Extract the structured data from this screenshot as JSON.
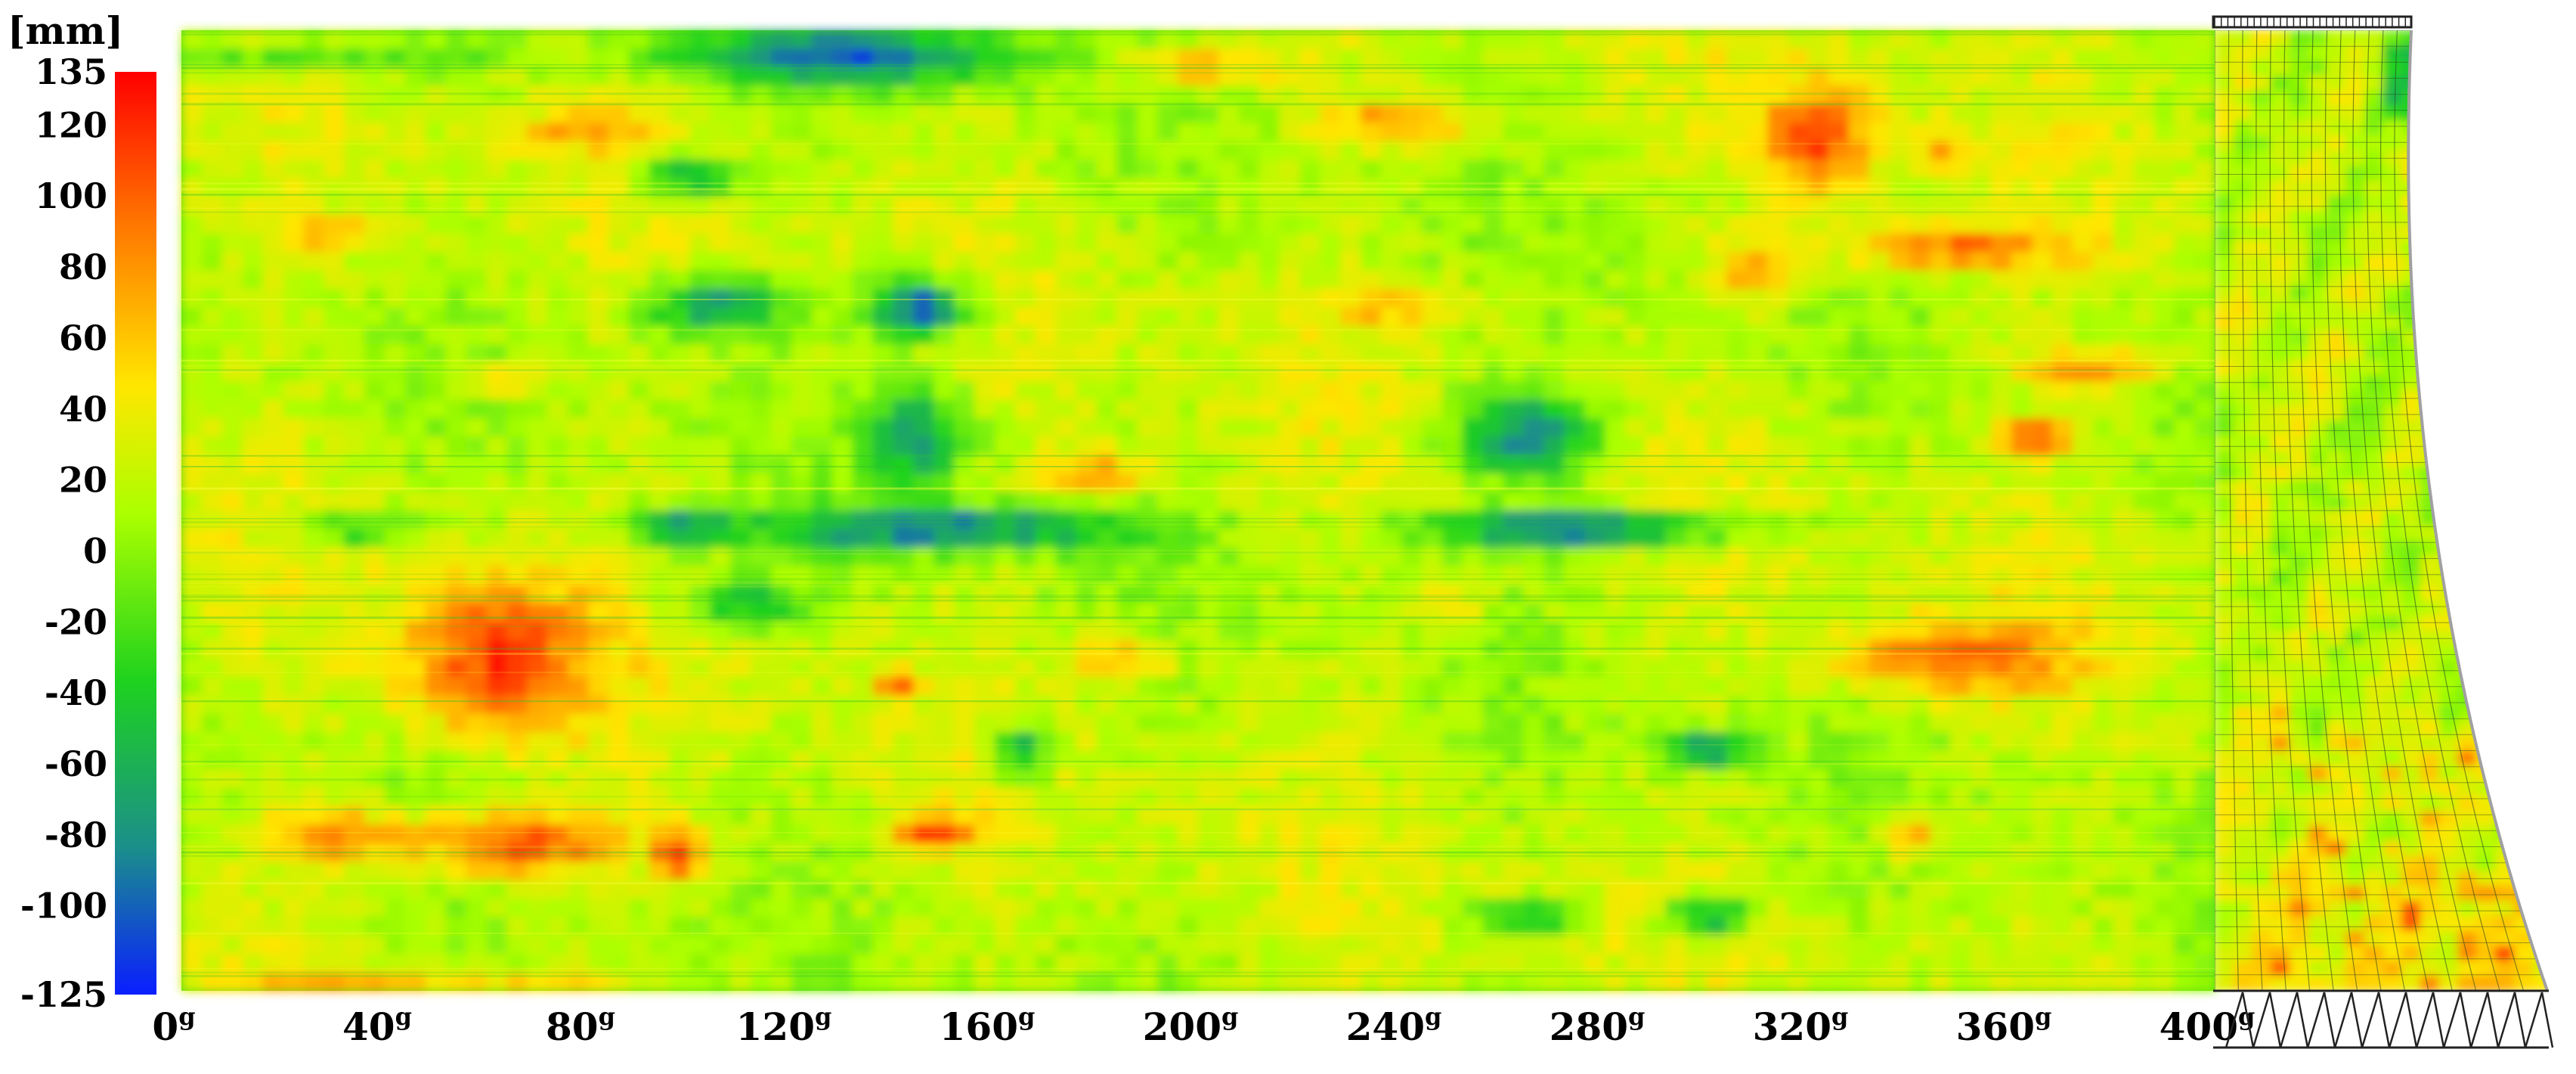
{
  "chart_data": {
    "type": "heatmap",
    "unit": "[mm]",
    "colorbar": {
      "min": -125,
      "max": 135,
      "ticks": [
        "135",
        "120",
        "100",
        "80",
        "60",
        "40",
        "20",
        "0",
        "-20",
        "-40",
        "-60",
        "-80",
        "-100",
        "-125"
      ],
      "colors": [
        "#ff0000",
        "#ff7a00",
        "#ffe600",
        "#aaff00",
        "#1ed21e",
        "#1b8f8a",
        "#0a1eff"
      ]
    },
    "x_ticks": [
      {
        "value": 0,
        "label": "0",
        "sup": "g"
      },
      {
        "value": 40,
        "label": "40",
        "sup": "g"
      },
      {
        "value": 80,
        "label": "80",
        "sup": "g"
      },
      {
        "value": 120,
        "label": "120",
        "sup": "g"
      },
      {
        "value": 160,
        "label": "160",
        "sup": "g"
      },
      {
        "value": 200,
        "label": "200",
        "sup": "g"
      },
      {
        "value": 240,
        "label": "240",
        "sup": "g"
      },
      {
        "value": 280,
        "label": "280",
        "sup": "g"
      },
      {
        "value": 320,
        "label": "320",
        "sup": "g"
      },
      {
        "value": 360,
        "label": "360",
        "sup": "g"
      },
      {
        "value": 400,
        "label": "400",
        "sup": "g"
      }
    ],
    "xlim": [
      0,
      400
    ],
    "grid": false,
    "background_value": 20,
    "blobs": [
      {
        "x": 62,
        "y": -35,
        "rx": 18,
        "ry": 22,
        "v": 110
      },
      {
        "x": 66,
        "y": -85,
        "rx": 20,
        "ry": 9,
        "v": 120
      },
      {
        "x": 30,
        "y": -83,
        "rx": 14,
        "ry": 7,
        "v": 95
      },
      {
        "x": 98,
        "y": -88,
        "rx": 5,
        "ry": 7,
        "v": 125
      },
      {
        "x": 148,
        "y": -82,
        "rx": 8,
        "ry": 4,
        "v": 110
      },
      {
        "x": 322,
        "y": 105,
        "rx": 12,
        "ry": 16,
        "v": 105
      },
      {
        "x": 348,
        "y": 76,
        "rx": 24,
        "ry": 6,
        "v": 95
      },
      {
        "x": 348,
        "y": -35,
        "rx": 22,
        "ry": 10,
        "v": 95
      },
      {
        "x": 375,
        "y": 43,
        "rx": 14,
        "ry": 5,
        "v": 90
      },
      {
        "x": 365,
        "y": 25,
        "rx": 8,
        "ry": 5,
        "v": 95
      },
      {
        "x": 180,
        "y": 15,
        "rx": 10,
        "ry": 7,
        "v": 80
      },
      {
        "x": 200,
        "y": 125,
        "rx": 16,
        "ry": 6,
        "v": 75
      },
      {
        "x": 310,
        "y": 70,
        "rx": 8,
        "ry": 8,
        "v": 80
      },
      {
        "x": 340,
        "y": -83,
        "rx": 6,
        "ry": 6,
        "v": 90
      },
      {
        "x": 65,
        "y": 40,
        "rx": 6,
        "ry": 4,
        "v": 80
      },
      {
        "x": 140,
        "y": -42,
        "rx": 4,
        "ry": 4,
        "v": 95
      },
      {
        "x": 145,
        "y": 60,
        "rx": 10,
        "ry": 8,
        "v": -115
      },
      {
        "x": 130,
        "y": 128,
        "rx": 35,
        "ry": 8,
        "v": -90
      },
      {
        "x": 100,
        "y": 95,
        "rx": 10,
        "ry": 6,
        "v": -70
      },
      {
        "x": 105,
        "y": 60,
        "rx": 14,
        "ry": 8,
        "v": -75
      },
      {
        "x": 150,
        "y": 0,
        "rx": 35,
        "ry": 6,
        "v": -90
      },
      {
        "x": 145,
        "y": 25,
        "rx": 10,
        "ry": 14,
        "v": -70
      },
      {
        "x": 265,
        "y": 25,
        "rx": 14,
        "ry": 12,
        "v": -85
      },
      {
        "x": 275,
        "y": 0,
        "rx": 30,
        "ry": 5,
        "v": -105
      },
      {
        "x": 165,
        "y": -60,
        "rx": 6,
        "ry": 8,
        "v": -70
      },
      {
        "x": 300,
        "y": -60,
        "rx": 8,
        "ry": 5,
        "v": -80
      },
      {
        "x": 300,
        "y": -105,
        "rx": 8,
        "ry": 5,
        "v": -85
      },
      {
        "x": 265,
        "y": -105,
        "rx": 10,
        "ry": 4,
        "v": -75
      },
      {
        "x": 98,
        "y": 0,
        "rx": 10,
        "ry": 5,
        "v": -80
      },
      {
        "x": 110,
        "y": -20,
        "rx": 12,
        "ry": 6,
        "v": -55
      },
      {
        "x": 35,
        "y": 0,
        "rx": 12,
        "ry": 4,
        "v": -50
      },
      {
        "x": 240,
        "y": 110,
        "rx": 14,
        "ry": 6,
        "v": 85
      },
      {
        "x": 345,
        "y": 100,
        "rx": 5,
        "ry": 3,
        "v": 95
      },
      {
        "x": 20,
        "y": 128,
        "rx": 40,
        "ry": 5,
        "v": -30
      },
      {
        "x": 240,
        "y": 60,
        "rx": 14,
        "ry": 6,
        "v": 60
      },
      {
        "x": 185,
        "y": -35,
        "rx": 10,
        "ry": 6,
        "v": 75
      },
      {
        "x": 250,
        "y": -20,
        "rx": 6,
        "ry": 4,
        "v": 80
      },
      {
        "x": 45,
        "y": -125,
        "rx": 40,
        "ry": 3,
        "v": 95
      },
      {
        "x": 80,
        "y": 108,
        "rx": 16,
        "ry": 5,
        "v": 60
      },
      {
        "x": 30,
        "y": 80,
        "rx": 12,
        "ry": 5,
        "v": 60
      }
    ]
  },
  "inset": {
    "description": "cooling tower shell section",
    "grid_cols": 14,
    "grid_rows": 60
  }
}
